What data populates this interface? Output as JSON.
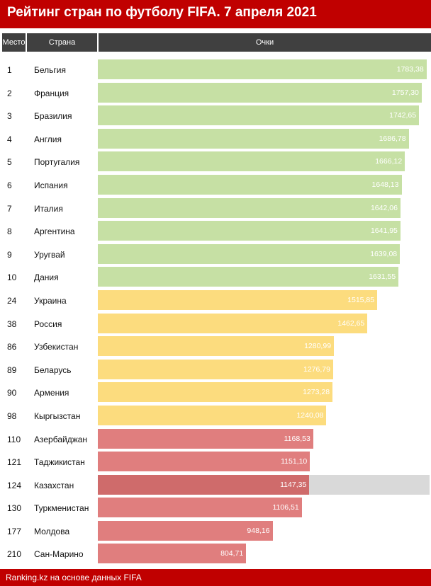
{
  "title": "Рейтинг стран по футболу FIFA. 7 апреля 2021",
  "headers": {
    "rank": "Место",
    "country": "Страна",
    "points": "Очки"
  },
  "footer": "Ranking.kz на основе данных FIFA",
  "colors": {
    "top10": "#c6e0a4",
    "cis": "#fcdc7e",
    "central_asia": "#e07e7e",
    "highlight": "#cf6b6b",
    "highlight_row": "#d9d9d9",
    "title_bg": "#c00000",
    "header_bg": "#404040"
  },
  "chart_data": {
    "type": "bar",
    "orientation": "horizontal",
    "title": "Рейтинг стран по футболу FIFA. 7 апреля 2021",
    "xlabel": "Очки",
    "xlim": [
      0,
      1800
    ],
    "rows": [
      {
        "rank": "1",
        "country": "Бельгия",
        "value": 1783.38,
        "label": "1783,38",
        "group": "top10"
      },
      {
        "rank": "2",
        "country": "Франция",
        "value": 1757.3,
        "label": "1757,30",
        "group": "top10"
      },
      {
        "rank": "3",
        "country": "Бразилия",
        "value": 1742.65,
        "label": "1742,65",
        "group": "top10"
      },
      {
        "rank": "4",
        "country": "Англия",
        "value": 1686.78,
        "label": "1686,78",
        "group": "top10"
      },
      {
        "rank": "5",
        "country": "Португалия",
        "value": 1666.12,
        "label": "1666,12",
        "group": "top10"
      },
      {
        "rank": "6",
        "country": "Испания",
        "value": 1648.13,
        "label": "1648,13",
        "group": "top10"
      },
      {
        "rank": "7",
        "country": "Италия",
        "value": 1642.06,
        "label": "1642,06",
        "group": "top10"
      },
      {
        "rank": "8",
        "country": "Аргентина",
        "value": 1641.95,
        "label": "1641,95",
        "group": "top10"
      },
      {
        "rank": "9",
        "country": "Уругвай",
        "value": 1639.08,
        "label": "1639,08",
        "group": "top10"
      },
      {
        "rank": "10",
        "country": "Дания",
        "value": 1631.55,
        "label": "1631,55",
        "group": "top10"
      },
      {
        "rank": "24",
        "country": "Украина",
        "value": 1515.85,
        "label": "1515,85",
        "group": "cis"
      },
      {
        "rank": "38",
        "country": "Россия",
        "value": 1462.65,
        "label": "1462,65",
        "group": "cis"
      },
      {
        "rank": "86",
        "country": "Узбекистан",
        "value": 1280.99,
        "label": "1280,99",
        "group": "cis"
      },
      {
        "rank": "89",
        "country": "Беларусь",
        "value": 1276.79,
        "label": "1276,79",
        "group": "cis"
      },
      {
        "rank": "90",
        "country": "Армения",
        "value": 1273.28,
        "label": "1273,28",
        "group": "cis"
      },
      {
        "rank": "98",
        "country": "Кыргызстан",
        "value": 1240.08,
        "label": "1240,08",
        "group": "cis"
      },
      {
        "rank": "110",
        "country": "Азербайджан",
        "value": 1168.53,
        "label": "1168,53",
        "group": "central_asia"
      },
      {
        "rank": "121",
        "country": "Таджикистан",
        "value": 1151.1,
        "label": "1151,10",
        "group": "central_asia"
      },
      {
        "rank": "124",
        "country": "Казахстан",
        "value": 1147.35,
        "label": "1147,35",
        "group": "highlight"
      },
      {
        "rank": "130",
        "country": "Туркменистан",
        "value": 1106.51,
        "label": "1106,51",
        "group": "central_asia"
      },
      {
        "rank": "177",
        "country": "Молдова",
        "value": 948.16,
        "label": "948,16",
        "group": "central_asia"
      },
      {
        "rank": "210",
        "country": "Сан-Марино",
        "value": 804.71,
        "label": "804,71",
        "group": "central_asia"
      }
    ]
  }
}
